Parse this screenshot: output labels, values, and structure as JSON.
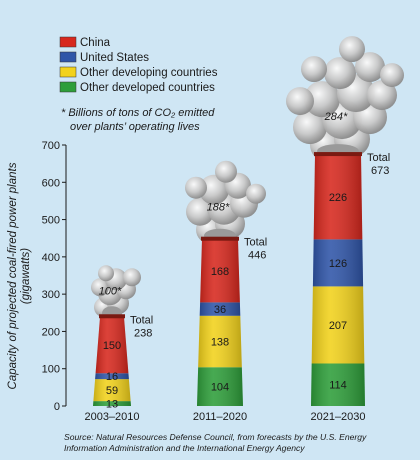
{
  "chart_data": {
    "type": "bar",
    "stacked": true,
    "categories": [
      "2003–2010",
      "2011–2020",
      "2021–2030"
    ],
    "series": [
      {
        "name": "Other developed countries",
        "color": "#2e9e3a",
        "values": [
          13,
          104,
          114
        ]
      },
      {
        "name": "Other developing countries",
        "color": "#f2d21b",
        "values": [
          59,
          138,
          207
        ]
      },
      {
        "name": "United States",
        "color": "#2f55a8",
        "values": [
          16,
          36,
          126
        ]
      },
      {
        "name": "China",
        "color": "#d7281e",
        "values": [
          150,
          168,
          226
        ]
      }
    ],
    "legend_order": [
      "China",
      "United States",
      "Other developing countries",
      "Other developed countries"
    ],
    "totals": [
      {
        "label": "Total",
        "value": "238"
      },
      {
        "label": "Total",
        "value": "446"
      },
      {
        "label": "Total",
        "value": "673"
      }
    ],
    "co2_labels": [
      "100*",
      "188*",
      "284*"
    ],
    "footnote": [
      "* Billions of tons of CO₂ emitted",
      "over plants’ operating lives"
    ],
    "ylabel": [
      "Capacity of projected coal-fired power plants",
      "(gigawatts)"
    ],
    "ylim": [
      0,
      700
    ],
    "yticks": [
      0,
      100,
      200,
      300,
      400,
      500,
      600,
      700
    ],
    "source": [
      "Source: Natural Resources Defense Council, from forecasts by the U.S. Energy",
      "Information Administration and the International Energy Agency"
    ],
    "legend_placement": "top-left",
    "grid": false
  }
}
